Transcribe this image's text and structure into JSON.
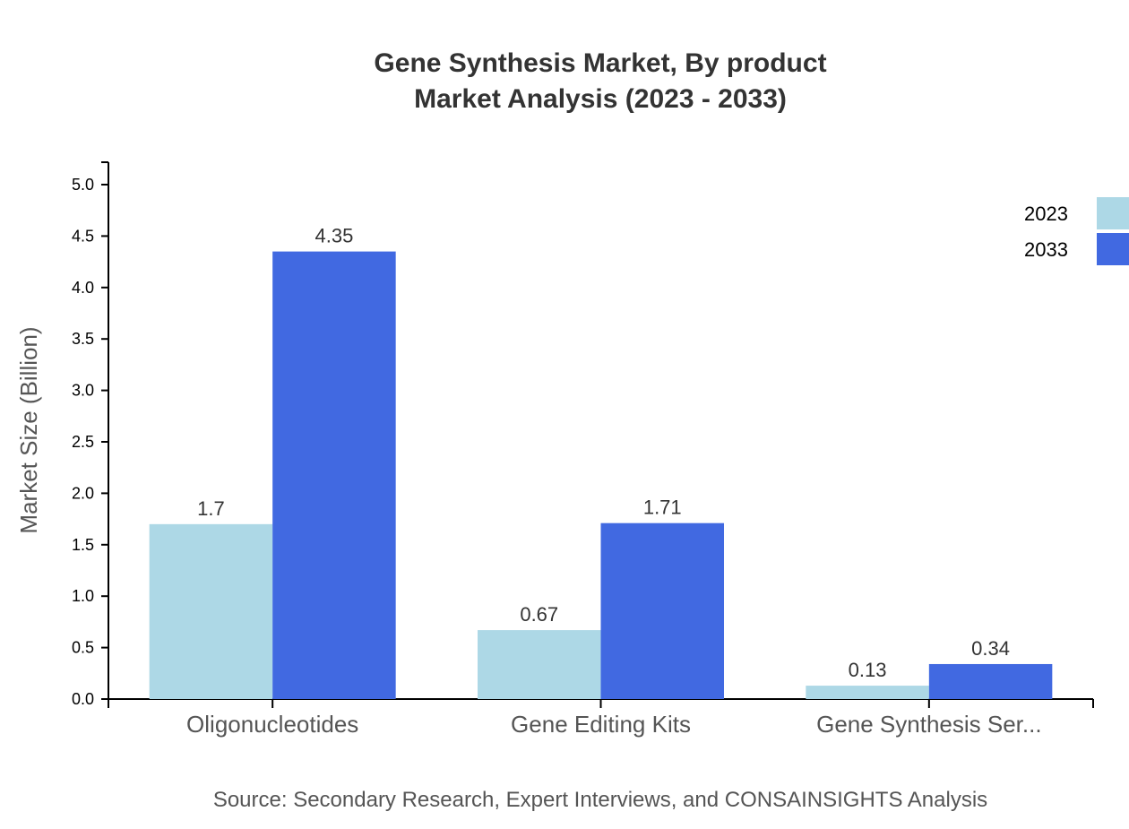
{
  "chart_data": {
    "type": "bar",
    "title": "Gene Synthesis Market, By product",
    "subtitle": "Market Analysis (2023 - 2033)",
    "xlabel": "",
    "ylabel": "Market Size (Billion)",
    "ylim": [
      0,
      5.2
    ],
    "yticks": [
      "0.0",
      "0.5",
      "1.0",
      "1.5",
      "2.0",
      "2.5",
      "3.0",
      "3.5",
      "4.0",
      "4.5",
      "5.0"
    ],
    "categories": [
      "Oligonucleotides",
      "Gene Editing Kits",
      "Gene Synthesis Ser..."
    ],
    "series": [
      {
        "name": "2023",
        "color": "#add8e6",
        "values": [
          1.7,
          0.67,
          0.13
        ],
        "labels": [
          "1.7",
          "0.67",
          "0.13"
        ]
      },
      {
        "name": "2033",
        "color": "#4169e1",
        "values": [
          4.35,
          1.71,
          0.34
        ],
        "labels": [
          "4.35",
          "1.71",
          "0.34"
        ]
      }
    ],
    "grid": false,
    "legend": "top-right",
    "source": "Source: Secondary Research, Expert Interviews, and CONSAINSIGHTS Analysis"
  }
}
